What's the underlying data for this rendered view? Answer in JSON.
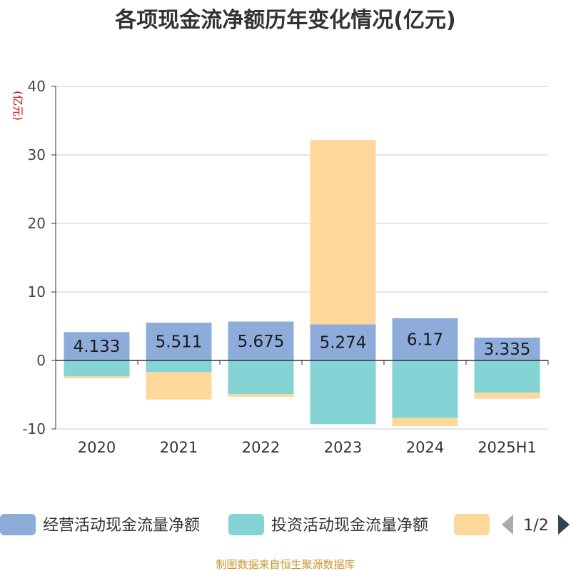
{
  "chart_data": {
    "type": "bar",
    "stacked": true,
    "title": "各项现金流净额历年变化情况(亿元)",
    "ylabel": "(亿元)",
    "ylim": [
      -10,
      40
    ],
    "yticks": [
      -10,
      0,
      10,
      20,
      30,
      40
    ],
    "grid": true,
    "categories": [
      "2020",
      "2021",
      "2022",
      "2023",
      "2024",
      "2025H1"
    ],
    "series": [
      {
        "name": "经营活动现金流量净额",
        "color": "#8eacda",
        "values": [
          4.133,
          5.511,
          5.675,
          5.274,
          6.17,
          3.335
        ],
        "value_labels": [
          "4.133",
          "5.511",
          "5.675",
          "5.274",
          "6.17",
          "3.335"
        ],
        "show_labels": true
      },
      {
        "name": "投资活动现金流量净额",
        "color": "#84d4d5",
        "values": [
          -2.3,
          -1.7,
          -4.9,
          -9.3,
          -8.4,
          -4.7
        ],
        "show_labels": false
      },
      {
        "name": "",
        "color": "#fdd89a",
        "values": [
          -0.3,
          -4.0,
          -0.4,
          26.9,
          -1.2,
          -0.9
        ],
        "show_labels": false
      }
    ],
    "legend": {
      "position": "bottom",
      "page": "1/2"
    }
  },
  "source": "制图数据来自恒生聚源数据库"
}
